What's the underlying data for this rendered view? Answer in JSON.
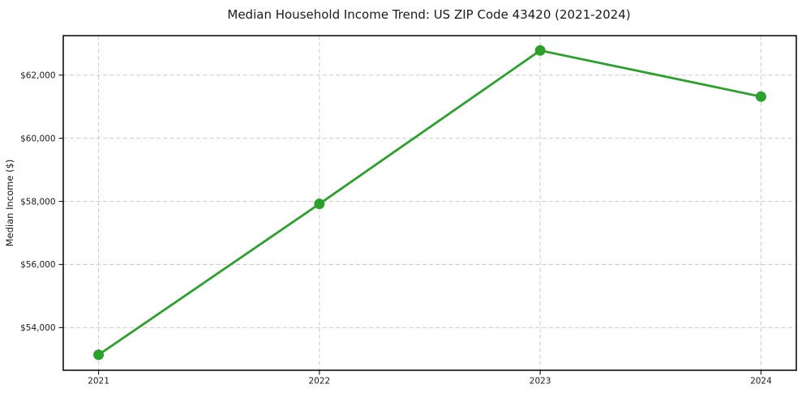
{
  "chart_data": {
    "type": "line",
    "title": "Median Household Income Trend: US ZIP Code 43420 (2021-2024)",
    "xlabel": "",
    "ylabel": "Median Income ($)",
    "x": [
      2021,
      2022,
      2023,
      2024
    ],
    "x_tick_labels": [
      "2021",
      "2022",
      "2023",
      "2024"
    ],
    "values": [
      53140,
      57920,
      62780,
      61320
    ],
    "y_ticks": [
      54000,
      56000,
      58000,
      60000,
      62000
    ],
    "y_tick_labels": [
      "$54,000",
      "$56,000",
      "$58,000",
      "$60,000",
      "$62,000"
    ],
    "xlim": [
      2020.84,
      2024.16
    ],
    "ylim": [
      52650,
      63250
    ],
    "grid": {
      "visible": true,
      "style": "dashed",
      "axes": "both"
    },
    "legend_position": "none",
    "marker": "circle",
    "marker_size": 13,
    "line_width": 2.8,
    "colors": {
      "line": "#2ca02c",
      "marker": "#2ca02c",
      "grid": "#cccccc",
      "axis": "#000000",
      "tick": "#262626",
      "text": "#1a1a1a",
      "background": "#ffffff"
    }
  }
}
